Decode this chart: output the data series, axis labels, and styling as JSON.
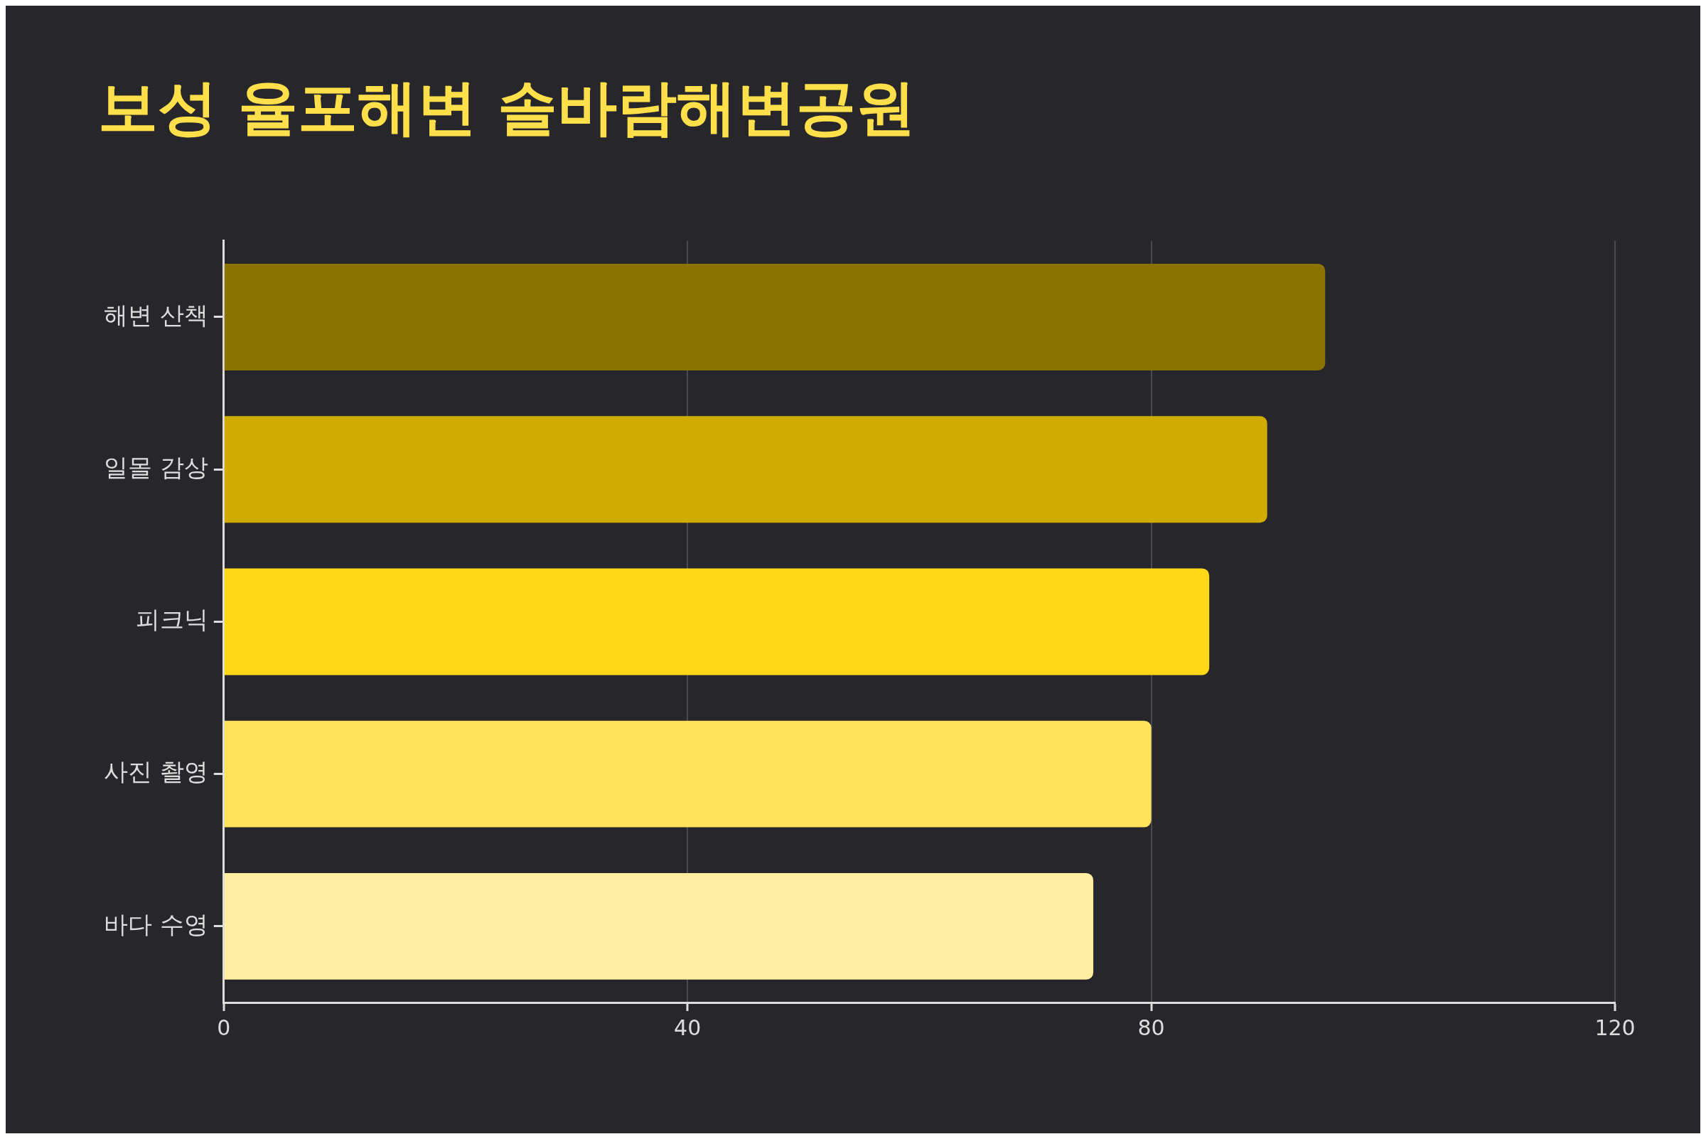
{
  "chart_data": {
    "type": "bar",
    "orientation": "horizontal",
    "title": "보성 율포해변 솔바람해변공원",
    "categories": [
      "해변 산책",
      "일몰 감상",
      "피크닉",
      "사진 촬영",
      "바다 수영"
    ],
    "values": [
      95,
      90,
      85,
      80,
      75
    ],
    "colors": [
      "#8b7300",
      "#d0ac00",
      "#ffd817",
      "#ffe15a",
      "#ffeea0"
    ],
    "xlim": [
      0,
      120
    ],
    "xticks": [
      0,
      40,
      80,
      120
    ],
    "grid": "x",
    "legend": false
  }
}
